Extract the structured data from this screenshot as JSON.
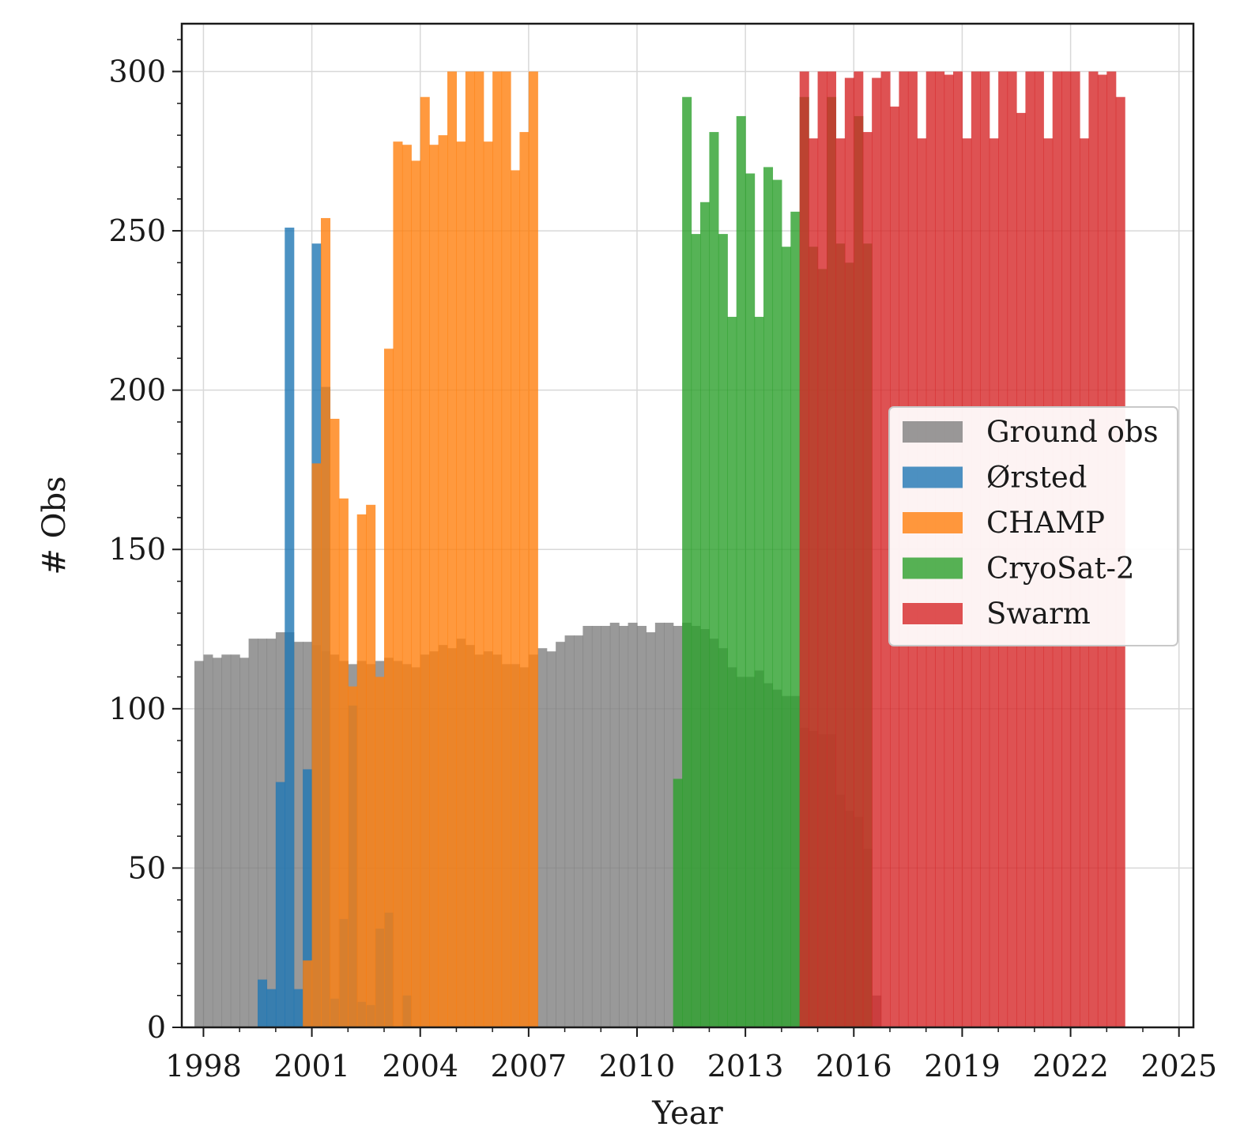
{
  "chart_data": {
    "type": "bar",
    "subtype": "overlaid step histogram, quarterly bins",
    "xlabel": "Year",
    "ylabel": "# Obs",
    "xlim": [
      1997.4,
      2025.4
    ],
    "ylim": [
      0,
      315
    ],
    "x_ticks": [
      1998,
      2001,
      2004,
      2007,
      2010,
      2013,
      2016,
      2019,
      2022,
      2025
    ],
    "x_tick_labels": [
      "1998",
      "2001",
      "2004",
      "2007",
      "2010",
      "2013",
      "2016",
      "2019",
      "2022",
      "2025"
    ],
    "y_ticks": [
      0,
      50,
      100,
      150,
      200,
      250,
      300
    ],
    "y_tick_labels": [
      "0",
      "50",
      "100",
      "150",
      "200",
      "250",
      "300"
    ],
    "grid": true,
    "legend_position": "center-right",
    "bin_width_years": 0.25,
    "series": [
      {
        "name": "Ground obs",
        "color": "#7f7f7f",
        "start": 1997.75,
        "values": [
          115,
          117,
          116,
          117,
          117,
          116,
          122,
          122,
          122,
          124,
          124,
          121,
          121,
          120,
          118,
          117,
          115,
          114,
          115,
          114,
          115,
          116,
          115,
          114,
          113,
          117,
          118,
          120,
          119,
          122,
          120,
          117,
          118,
          117,
          114,
          114,
          113,
          117,
          119,
          118,
          121,
          123,
          123,
          126,
          126,
          126,
          127,
          126,
          127,
          126,
          124,
          127,
          127,
          126,
          127,
          126,
          125,
          122,
          119,
          113,
          110,
          110,
          112,
          108,
          106,
          104,
          104,
          94,
          93,
          92,
          92,
          73,
          68,
          66,
          56,
          10
        ]
      },
      {
        "name": "Ørsted",
        "color": "#1f77b4",
        "start": 1999.5,
        "values": [
          15,
          12,
          77,
          251,
          12,
          81,
          246,
          201,
          9,
          34,
          101,
          8,
          7,
          31,
          36,
          0,
          10
        ]
      },
      {
        "name": "CHAMP",
        "color": "#ff7f0e",
        "start": 2000.75,
        "values": [
          21,
          177,
          254,
          191,
          166,
          107,
          161,
          164,
          110,
          213,
          278,
          277,
          272,
          292,
          277,
          280,
          300,
          278,
          300,
          300,
          278,
          300,
          300,
          269,
          281,
          300
        ]
      },
      {
        "name": "CryoSat-2",
        "color": "#2ca02c",
        "start": 2011.0,
        "values": [
          78,
          292,
          249,
          259,
          281,
          249,
          223,
          286,
          268,
          223,
          270,
          266,
          245,
          256,
          292,
          245,
          238,
          292,
          246,
          240,
          286,
          246
        ]
      },
      {
        "name": "Swarm",
        "color": "#d62728",
        "start": 2014.5,
        "values": [
          300,
          279,
          300,
          300,
          279,
          298,
          300,
          281,
          298,
          300,
          289,
          300,
          300,
          279,
          300,
          300,
          299,
          300,
          279,
          300,
          300,
          279,
          300,
          300,
          287,
          300,
          300,
          279,
          300,
          300,
          300,
          279,
          300,
          299,
          300,
          292
        ]
      }
    ]
  }
}
